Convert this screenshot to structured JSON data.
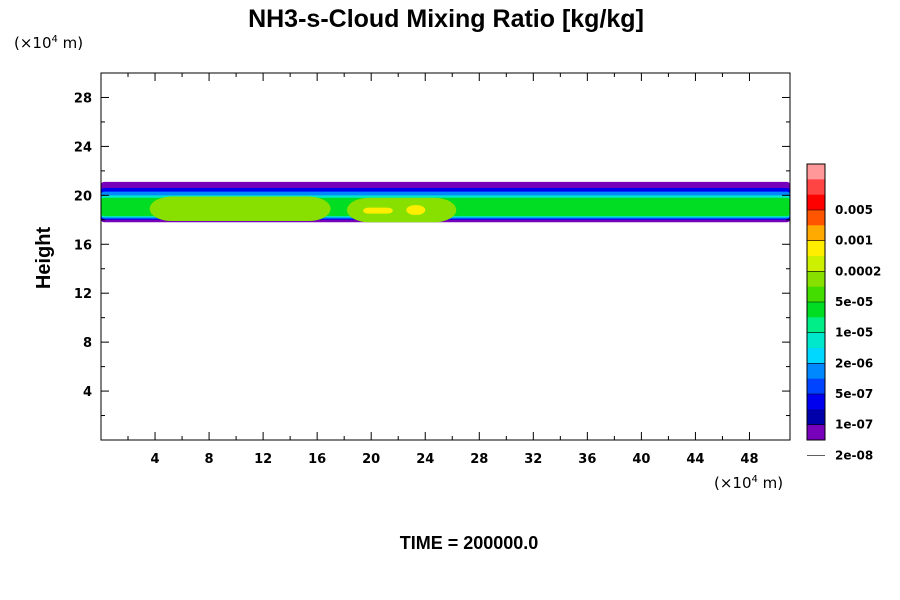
{
  "chart_data": {
    "type": "heatmap",
    "title": "NH3-s-Cloud Mixing Ratio [kg/kg]",
    "xlabel": "",
    "ylabel": "Height",
    "x_unit_prefix": "(×10",
    "x_unit_exp": "4",
    "x_unit_suffix": " m)",
    "y_unit_prefix": "(×10",
    "y_unit_exp": "4",
    "y_unit_suffix": " m)",
    "xlim": [
      0,
      51
    ],
    "ylim": [
      0,
      30
    ],
    "x_ticks": [
      "4",
      "8",
      "12",
      "16",
      "20",
      "24",
      "28",
      "32",
      "36",
      "40",
      "44",
      "48"
    ],
    "y_ticks": [
      "4",
      "8",
      "12",
      "16",
      "20",
      "24",
      "28"
    ],
    "colorbar": {
      "labels": [
        "0.005",
        "0.001",
        "0.0002",
        "5e-05",
        "1e-05",
        "2e-06",
        "5e-07",
        "1e-07",
        "2e-08"
      ],
      "colors": [
        "#ff9999",
        "#ff4444",
        "#ff0000",
        "#ff5500",
        "#ffaa00",
        "#ffee00",
        "#ccf000",
        "#88e000",
        "#44dd00",
        "#00dd22",
        "#00ee88",
        "#00e8cc",
        "#00d8ff",
        "#0088ff",
        "#0044ff",
        "#0000ee",
        "#0000aa",
        "#7700bb"
      ]
    },
    "regions": [
      {
        "level": "2e-08",
        "x": [
          0,
          51
        ],
        "y": [
          17.8,
          21.1
        ]
      },
      {
        "level": "1e-07",
        "x": [
          0,
          51
        ],
        "y": [
          17.9,
          20.9
        ]
      },
      {
        "level": "5e-07",
        "x": [
          0,
          51
        ],
        "y": [
          18.0,
          20.6
        ]
      },
      {
        "level": "2e-06",
        "x": [
          0,
          51
        ],
        "y": [
          18.1,
          20.3
        ]
      },
      {
        "level": "1e-05",
        "x": [
          0,
          51
        ],
        "y": [
          18.2,
          20.0
        ]
      },
      {
        "level": "5e-05",
        "x": [
          0,
          51
        ],
        "y": [
          18.3,
          19.8
        ]
      },
      {
        "level": "5e-05",
        "x": [
          4,
          51
        ],
        "y": [
          18.4,
          19.6
        ]
      },
      {
        "level": "0.0002",
        "x": [
          3.6,
          17
        ],
        "y": [
          17.9,
          19.9
        ]
      },
      {
        "level": "0.0002",
        "x": [
          18.2,
          26.3
        ],
        "y": [
          17.8,
          19.8
        ]
      },
      {
        "level": "0.001",
        "x": [
          19.4,
          21.6
        ],
        "y": [
          18.5,
          19.0
        ]
      },
      {
        "level": "0.001",
        "x": [
          22.6,
          24.0
        ],
        "y": [
          18.4,
          19.2
        ]
      }
    ],
    "footer": "TIME = 200000.0"
  }
}
